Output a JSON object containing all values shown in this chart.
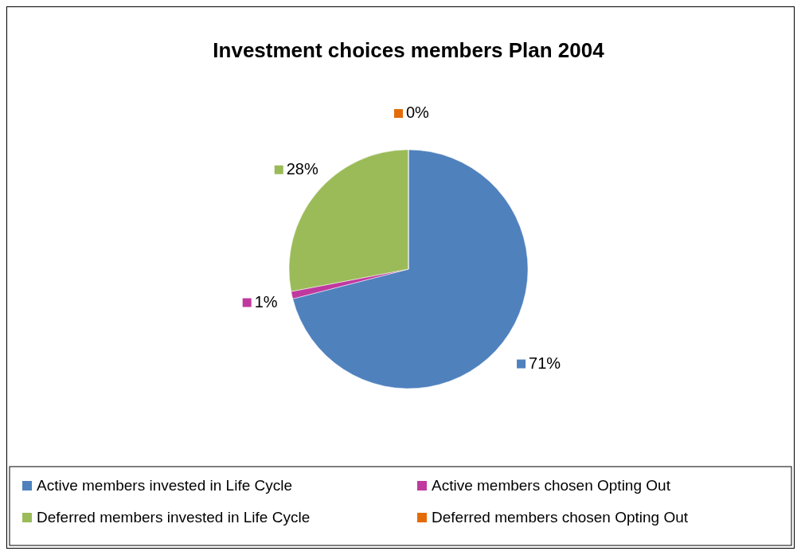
{
  "chart_data": {
    "type": "pie",
    "title": "Investment choices members Plan 2004",
    "categories": [
      "Active members invested in Life Cycle",
      "Active members chosen Opting Out",
      "Deferred members invested in Life Cycle",
      "Deferred members chosen Opting Out"
    ],
    "values": [
      71,
      1,
      28,
      0
    ],
    "value_labels": [
      "71%",
      "1%",
      "28%",
      "0%"
    ],
    "colors": [
      "#4f81bd",
      "#c0399f",
      "#9bbb59",
      "#e36c09"
    ],
    "legend": "bottom"
  }
}
